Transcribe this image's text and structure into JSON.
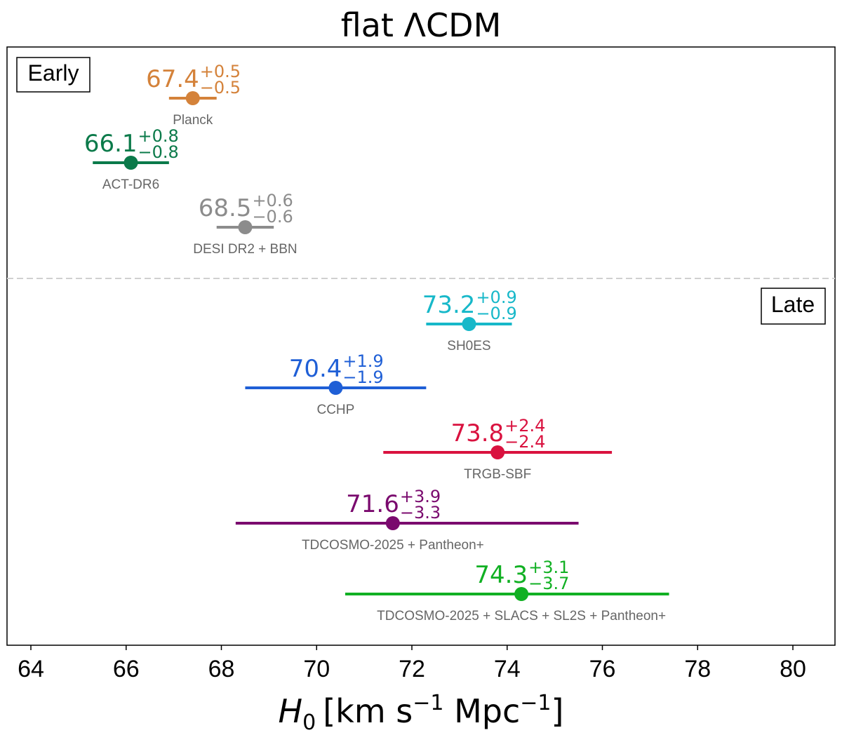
{
  "chart_data": {
    "type": "scatter",
    "title": "flat ΛCDM",
    "xlabel": {
      "symbol": "H",
      "subscript": "0",
      "units_a": "[km s",
      "exp_a": "−1",
      "units_b": " Mpc",
      "exp_b": "−1",
      "close": "]"
    },
    "xlim": [
      63.5,
      80.9
    ],
    "xticks": [
      64,
      66,
      68,
      70,
      72,
      74,
      76,
      78,
      80
    ],
    "grid": false,
    "groups": [
      {
        "label": "Early"
      },
      {
        "label": "Late"
      }
    ],
    "divider": "dashed line between Early and Late groups",
    "series": [
      {
        "name": "Planck",
        "group": "Early",
        "value": 67.4,
        "plus": 0.5,
        "minus": 0.5,
        "value_label": "67.4",
        "plus_label": "+0.5",
        "minus_label": "−0.5",
        "color": "#d4823a"
      },
      {
        "name": "ACT-DR6",
        "group": "Early",
        "value": 66.1,
        "plus": 0.8,
        "minus": 0.8,
        "value_label": "66.1",
        "plus_label": "+0.8",
        "minus_label": "−0.8",
        "color": "#0b7a4a"
      },
      {
        "name": "DESI DR2 + BBN",
        "group": "Early",
        "value": 68.5,
        "plus": 0.6,
        "minus": 0.6,
        "value_label": "68.5",
        "plus_label": "+0.6",
        "minus_label": "−0.6",
        "color": "#8c8c8c"
      },
      {
        "name": "SH0ES",
        "group": "Late",
        "value": 73.2,
        "plus": 0.9,
        "minus": 0.9,
        "value_label": "73.2",
        "plus_label": "+0.9",
        "minus_label": "−0.9",
        "color": "#17b8c9"
      },
      {
        "name": "CCHP",
        "group": "Late",
        "value": 70.4,
        "plus": 1.9,
        "minus": 1.9,
        "value_label": "70.4",
        "plus_label": "+1.9",
        "minus_label": "−1.9",
        "color": "#1f5fd6"
      },
      {
        "name": "TRGB-SBF",
        "group": "Late",
        "value": 73.8,
        "plus": 2.4,
        "minus": 2.4,
        "value_label": "73.8",
        "plus_label": "+2.4",
        "minus_label": "−2.4",
        "color": "#d9123f"
      },
      {
        "name": "TDCOSMO-2025 + Pantheon+",
        "group": "Late",
        "value": 71.6,
        "plus": 3.9,
        "minus": 3.3,
        "value_label": "71.6",
        "plus_label": "+3.9",
        "minus_label": "−3.3",
        "color": "#7a0a6e"
      },
      {
        "name": "TDCOSMO-2025 + SLACS + SL2S + Pantheon+",
        "group": "Late",
        "value": 74.3,
        "plus": 3.1,
        "minus": 3.7,
        "value_label": "74.3",
        "plus_label": "+3.1",
        "minus_label": "−3.7",
        "color": "#11b023"
      }
    ]
  }
}
